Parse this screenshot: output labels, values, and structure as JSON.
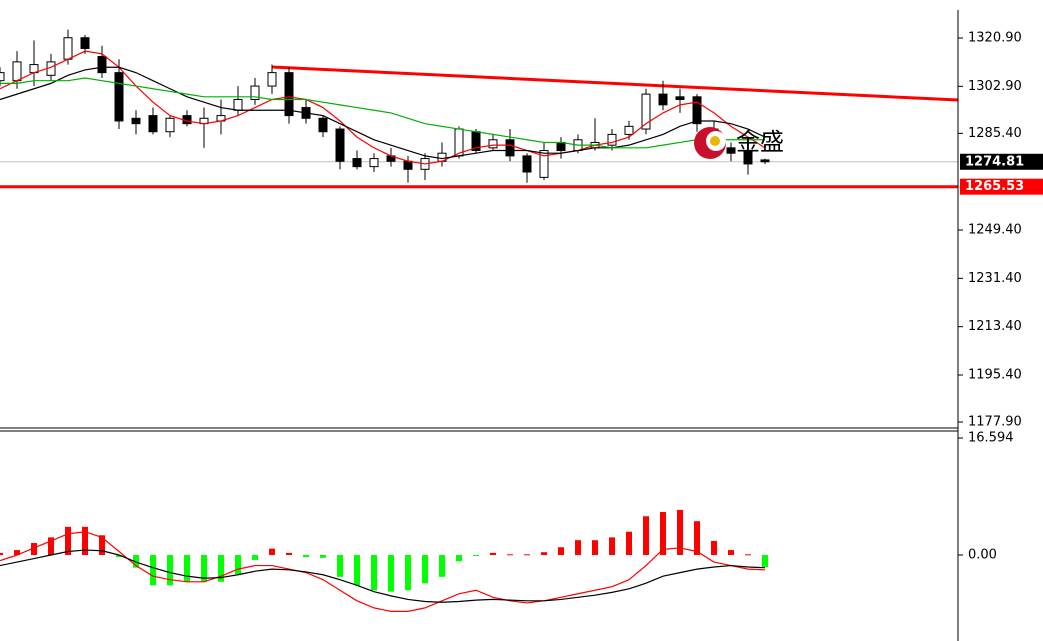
{
  "chart_data": [
    {
      "type": "candlestick",
      "open": [
        1305,
        1305,
        1308,
        1307,
        1313,
        1321,
        1314,
        1308,
        1291,
        1292,
        1286,
        1292,
        1289,
        1290,
        1294,
        1298,
        1303,
        1308,
        1295,
        1291,
        1287,
        1276,
        1273,
        1277,
        1275,
        1272,
        1275,
        1277,
        1286,
        1280,
        1283,
        1277,
        1269,
        1282,
        1279,
        1280,
        1281,
        1285,
        1287,
        1300,
        1299,
        1299,
        1287,
        1280,
        1279,
        1275.5
      ],
      "high": [
        1310,
        1316,
        1320,
        1315,
        1324,
        1322,
        1318,
        1313,
        1294,
        1295,
        1292,
        1294,
        1295,
        1298,
        1303,
        1306,
        1311,
        1310,
        1298,
        1292,
        1288,
        1279,
        1278,
        1280,
        1277,
        1278,
        1282,
        1288,
        1287,
        1285,
        1287,
        1278,
        1282,
        1284,
        1285,
        1291,
        1287,
        1290,
        1302,
        1305,
        1302,
        1300,
        1290,
        1282,
        1281,
        1276
      ],
      "low": [
        1303,
        1302,
        1303,
        1305,
        1311,
        1315,
        1306,
        1287,
        1285,
        1285,
        1284,
        1288,
        1280,
        1285,
        1292,
        1296,
        1300,
        1289,
        1289,
        1284,
        1272,
        1272,
        1271,
        1273,
        1267,
        1268,
        1273,
        1276,
        1278,
        1279,
        1275,
        1267,
        1268,
        1276,
        1278,
        1279,
        1279,
        1283,
        1285,
        1294,
        1293,
        1286,
        1276,
        1275,
        1270,
        1274
      ],
      "close": [
        1308,
        1312,
        1311,
        1312,
        1321,
        1317,
        1308,
        1290,
        1289,
        1286,
        1291,
        1289,
        1291,
        1292,
        1298,
        1303,
        1308,
        1292,
        1291,
        1286,
        1275,
        1273,
        1276,
        1275,
        1272,
        1276,
        1278,
        1287,
        1279,
        1283,
        1277,
        1271,
        1279,
        1279,
        1283,
        1282,
        1285,
        1288,
        1300,
        1296,
        1298,
        1289,
        1280,
        1278,
        1274,
        1274.81
      ],
      "up_color": "#ffffff",
      "down_color": "#000000",
      "outline_color": "#000000",
      "overlays": [
        {
          "color": "#ff0000",
          "values": [
            1302,
            1305,
            1308,
            1310,
            1313,
            1316,
            1315,
            1310,
            1303,
            1297,
            1292,
            1290,
            1289,
            1290,
            1292,
            1295,
            1298,
            1299,
            1298,
            1295,
            1290,
            1284,
            1280,
            1277,
            1275,
            1274,
            1275,
            1278,
            1280,
            1281,
            1281,
            1279,
            1277,
            1278,
            1279,
            1281,
            1282,
            1284,
            1289,
            1293,
            1296,
            1297,
            1293,
            1288,
            1284,
            1280
          ]
        },
        {
          "color": "#000000",
          "values": [
            1298,
            1300,
            1302,
            1304,
            1307,
            1309,
            1310,
            1310,
            1308,
            1305,
            1302,
            1299,
            1297,
            1295,
            1294,
            1294,
            1294,
            1294,
            1293,
            1292,
            1289,
            1286,
            1283,
            1281,
            1279,
            1277,
            1276,
            1277,
            1278,
            1279,
            1279,
            1279,
            1278,
            1278,
            1279,
            1280,
            1280,
            1281,
            1283,
            1285,
            1288,
            1290,
            1290,
            1289,
            1287,
            1284
          ]
        },
        {
          "color": "#00b000",
          "values": [
            1304,
            1304,
            1305,
            1305,
            1305,
            1306,
            1305,
            1304,
            1303,
            1302,
            1301,
            1300,
            1299,
            1299,
            1299,
            1299,
            1298,
            1298,
            1298,
            1297,
            1296,
            1295,
            1294,
            1293,
            1291,
            1289,
            1288,
            1287,
            1286,
            1285,
            1284,
            1283,
            1282,
            1282,
            1281,
            1281,
            1280,
            1280,
            1280,
            1281,
            1282,
            1283,
            1283,
            1283,
            1283,
            1283
          ]
        }
      ],
      "trendline": {
        "color": "#ff0000",
        "x": [
          16,
          56.35
        ],
        "y": [
          1310.1,
          1297.8
        ]
      },
      "support": {
        "value": 1265.53,
        "color": "#ff0000"
      },
      "last_price": {
        "value": 1274.81,
        "color": "#c0c0c0"
      },
      "watermark": "金盛",
      "ylim": [
        1175.67,
        1335.05
      ],
      "yticks": [
        {
          "value": 1320.9,
          "label": "1320.90"
        },
        {
          "value": 1302.9,
          "label": "1302.90"
        },
        {
          "value": 1285.4,
          "label": "1285.40"
        },
        {
          "value": 1249.4,
          "label": "1249.40"
        },
        {
          "value": 1231.4,
          "label": "1231.40"
        },
        {
          "value": 1213.4,
          "label": "1213.40"
        },
        {
          "value": 1195.4,
          "label": "1195.40"
        },
        {
          "value": 1177.9,
          "label": "1177.90"
        }
      ]
    },
    {
      "type": "bar",
      "values": [
        0.3,
        0.7,
        1.7,
        2.5,
        4.0,
        4.0,
        2.8,
        -0.3,
        -1.8,
        -4.3,
        -4.3,
        -3.8,
        -3.8,
        -3.8,
        -2.7,
        -0.7,
        0.9,
        0.3,
        -0.3,
        -0.4,
        -3.1,
        -4.3,
        -5.0,
        -5.2,
        -5.0,
        -4.0,
        -3.1,
        -0.9,
        -0.1,
        0.3,
        0.1,
        0.1,
        0.4,
        1.1,
        2.1,
        2.1,
        2.5,
        3.3,
        5.5,
        6.1,
        6.4,
        4.8,
        2.0,
        0.7,
        0.1,
        -1.7
      ],
      "up_color": "#ff0000",
      "down_color": "#00ff00",
      "overlays": [
        {
          "color": "#ff0000",
          "values": [
            -0.8,
            0,
            1,
            2,
            3,
            3.3,
            2.5,
            0.5,
            -1.5,
            -3,
            -3.5,
            -3.8,
            -3.8,
            -3,
            -2,
            -1.5,
            -1.5,
            -2,
            -2.5,
            -3.5,
            -5,
            -6.5,
            -7.5,
            -8,
            -8,
            -7.5,
            -6.5,
            -5.5,
            -5,
            -6,
            -6.5,
            -6.8,
            -6.5,
            -6,
            -5.5,
            -5,
            -4.5,
            -3.5,
            -1.5,
            0.8,
            1,
            0.5,
            -1,
            -1.5,
            -2,
            -2.1
          ]
        },
        {
          "color": "#000000",
          "values": [
            -1.5,
            -1,
            -0.5,
            0,
            0.5,
            0.7,
            0.6,
            0,
            -1,
            -1.8,
            -2.5,
            -3,
            -3.3,
            -3.2,
            -2.8,
            -2.3,
            -2,
            -2.1,
            -2.4,
            -2.8,
            -3.5,
            -4.3,
            -5.2,
            -5.8,
            -6.3,
            -6.6,
            -6.7,
            -6.6,
            -6.4,
            -6.3,
            -6.4,
            -6.5,
            -6.5,
            -6.3,
            -6,
            -5.7,
            -5.3,
            -4.8,
            -4,
            -3,
            -2.5,
            -2,
            -1.7,
            -1.5,
            -1.7,
            -1.8
          ]
        }
      ],
      "ylim": [
        -12.2,
        17.45
      ],
      "yticks": [
        16.594,
        {
          "value": 0,
          "label": "0.00"
        }
      ]
    }
  ]
}
